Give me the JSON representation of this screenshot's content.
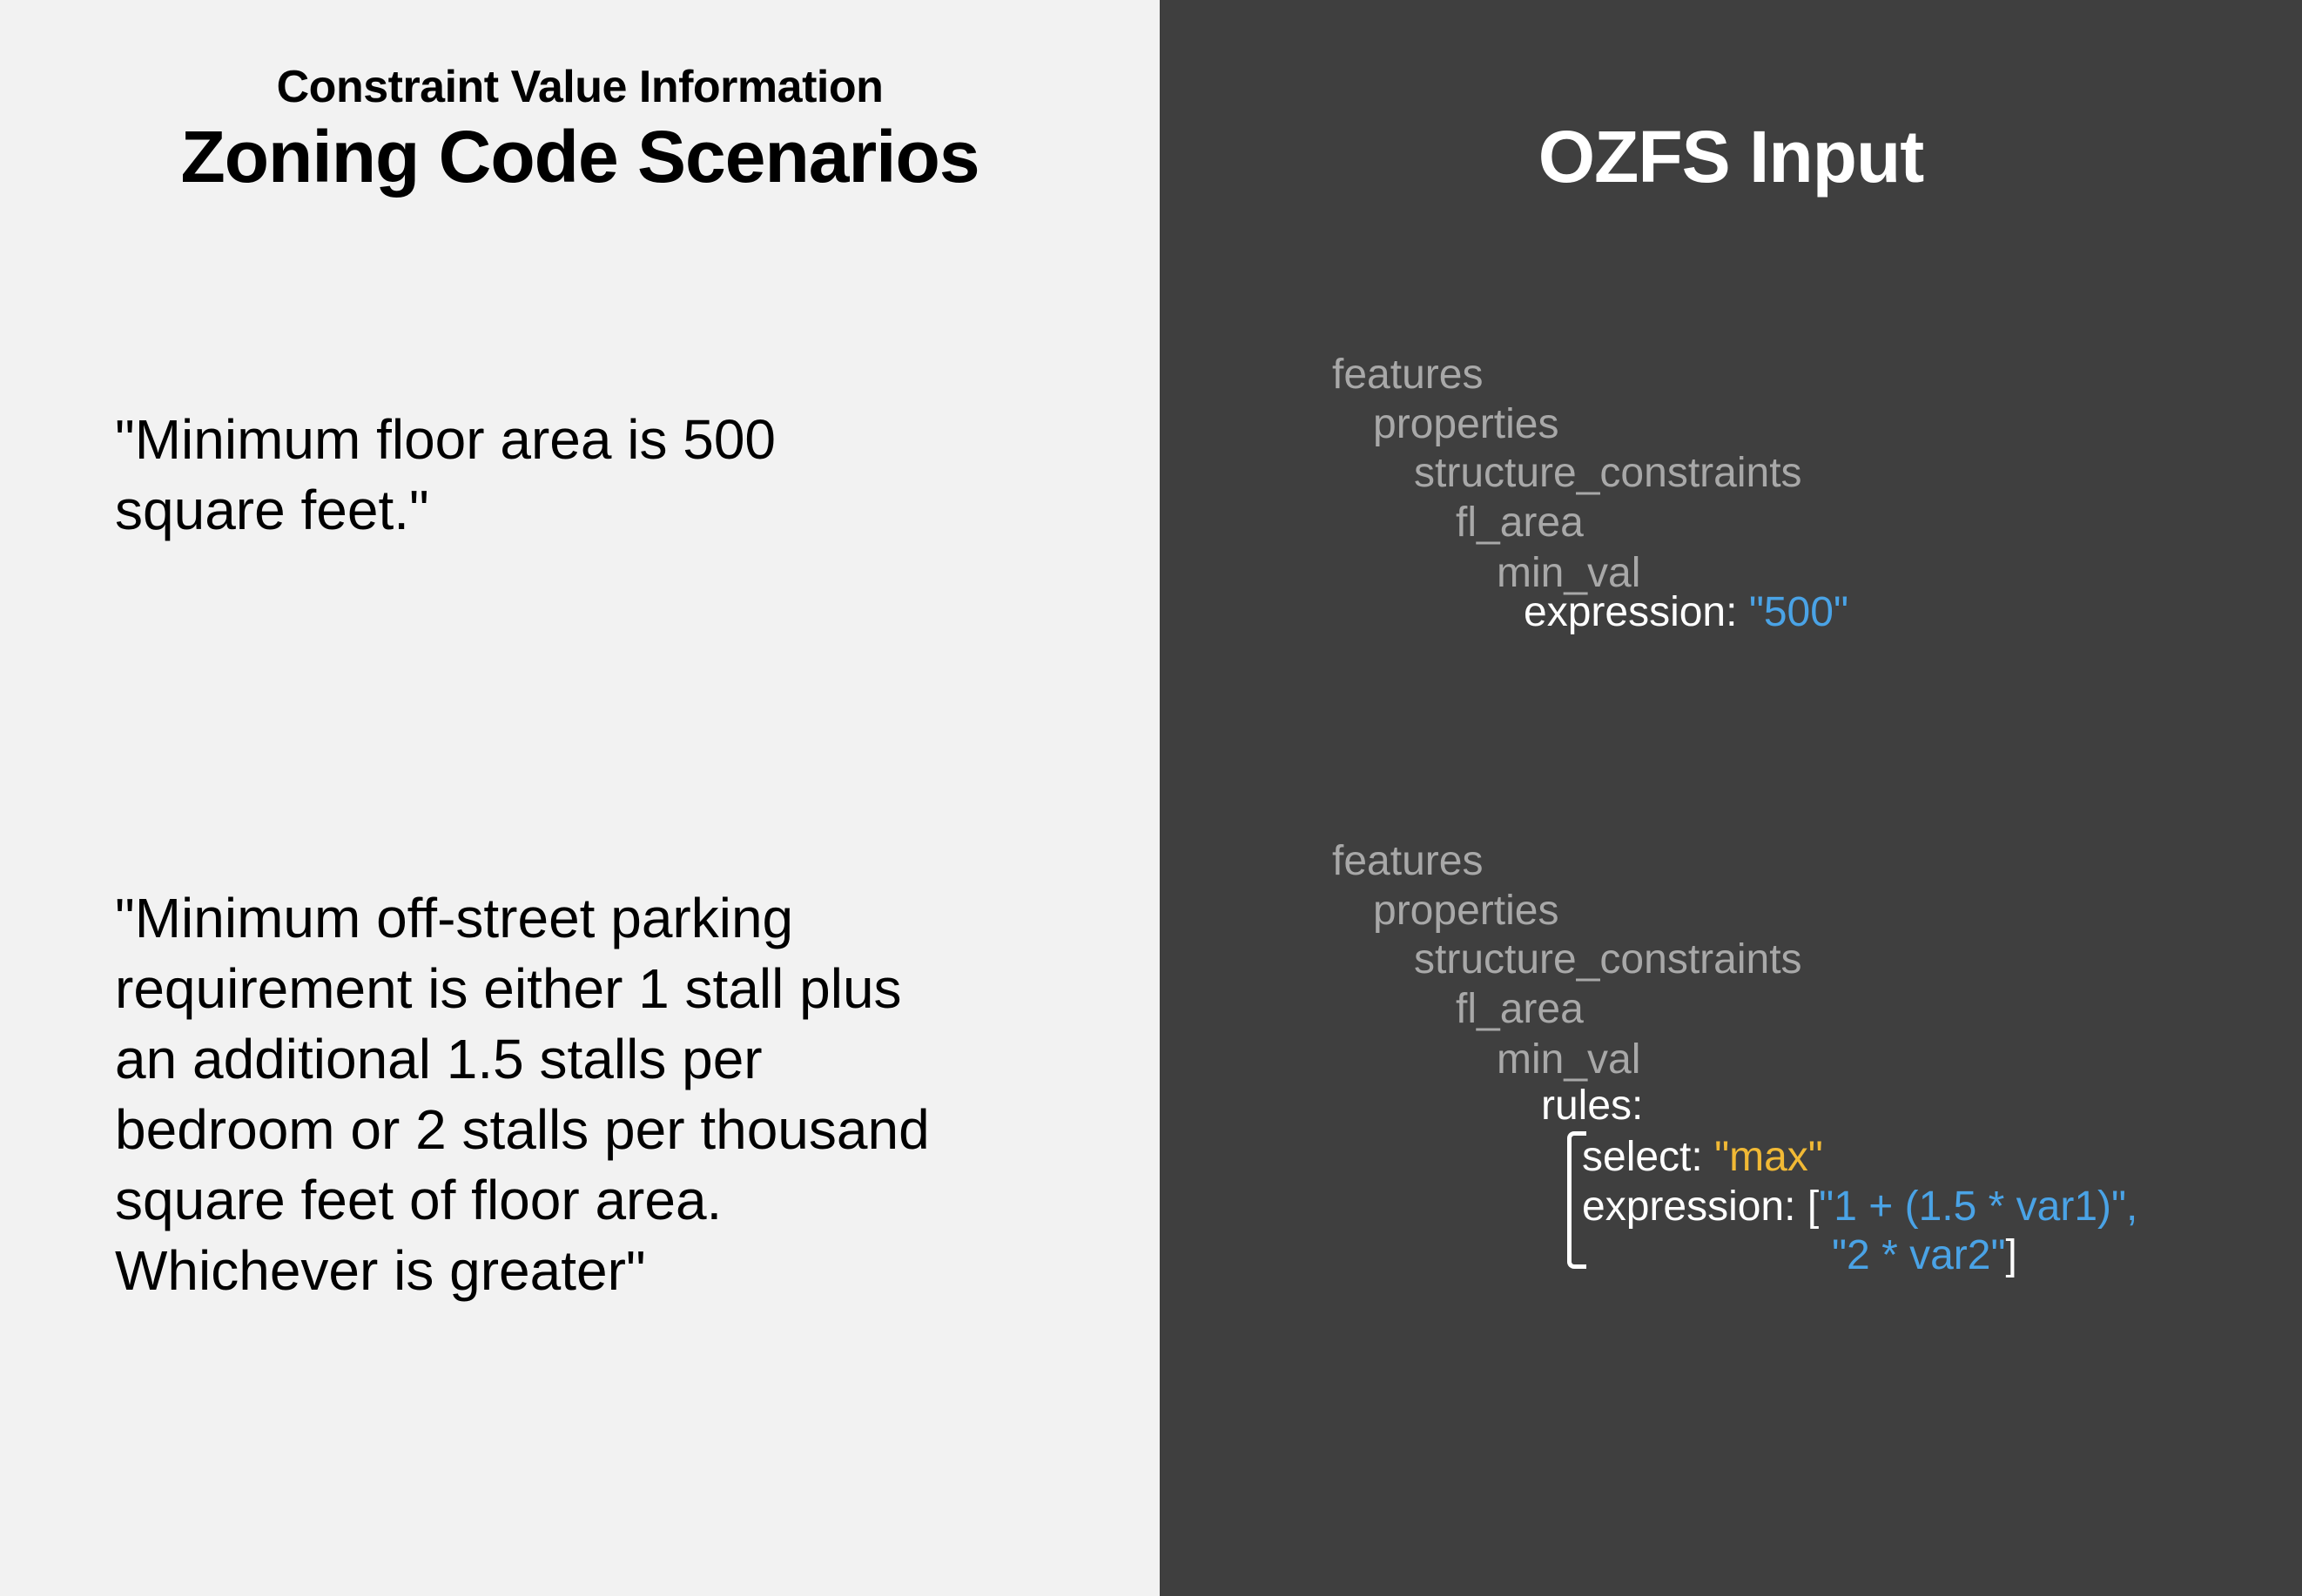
{
  "left": {
    "subtitle": "Constraint Value Information",
    "title": "Zoning Code Scenarios",
    "scenario1_lines": [
      "\"Minimum floor area is 500",
      "square feet.\""
    ],
    "scenario2_lines": [
      "\"Minimum off-street parking",
      "requirement is either 1 stall plus",
      "an additional 1.5 stalls per",
      "bedroom or 2 stalls per thousand",
      "square feet of floor area.",
      "Whichever is greater\""
    ]
  },
  "right": {
    "title": "OZFS Input",
    "block1": {
      "features": "features",
      "properties": "properties",
      "structure_constraints": "structure_constraints",
      "fl_area": "fl_area",
      "min_val": "min_val",
      "expression_key": "expression:",
      "expression_value": "\"500\""
    },
    "block2": {
      "features": "features",
      "properties": "properties",
      "structure_constraints": "structure_constraints",
      "fl_area": "fl_area",
      "min_val": "min_val",
      "rules_key": "rules:",
      "select_key": "select:",
      "select_value": "\"max\"",
      "expression_key": "expression:",
      "bracket_open": "[",
      "expr_value_1": "\"1 + (1.5 * var1)\",",
      "expr_value_2": "\"2 * var2\"",
      "bracket_close": "]"
    }
  },
  "colors": {
    "left_bg": "#f2f2f2",
    "right_bg": "#3f3f3f",
    "key_gray": "#a8a8a8",
    "value_blue": "#4aa3e6",
    "value_yellow": "#f1b935"
  }
}
